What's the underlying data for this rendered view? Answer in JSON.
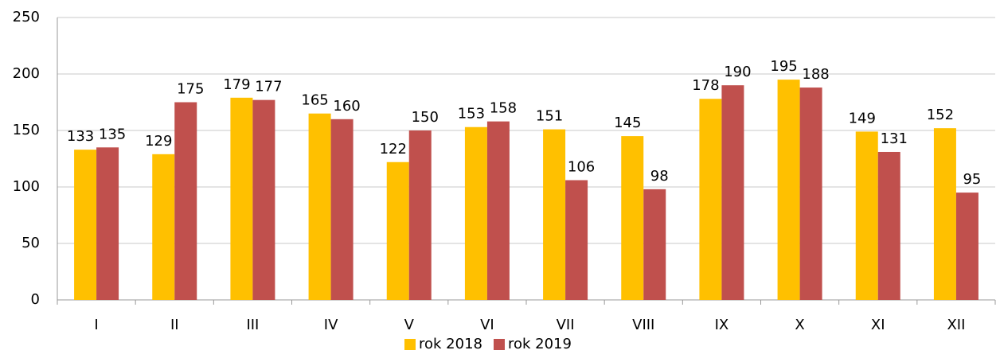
{
  "chart_data": {
    "type": "bar",
    "categories": [
      "I",
      "II",
      "III",
      "IV",
      "V",
      "VI",
      "VII",
      "VIII",
      "IX",
      "X",
      "XI",
      "XII"
    ],
    "series": [
      {
        "name": "rok 2018",
        "color": "#FFC000",
        "values": [
          133,
          129,
          179,
          165,
          122,
          153,
          151,
          145,
          178,
          195,
          149,
          152
        ]
      },
      {
        "name": "rok 2019",
        "color": "#C0504D",
        "values": [
          135,
          175,
          177,
          160,
          150,
          158,
          106,
          98,
          190,
          188,
          131,
          95
        ]
      }
    ],
    "ylim": [
      0,
      250
    ],
    "yticks": [
      0,
      50,
      100,
      150,
      200,
      250
    ],
    "grid": true,
    "legend": "bottom"
  }
}
